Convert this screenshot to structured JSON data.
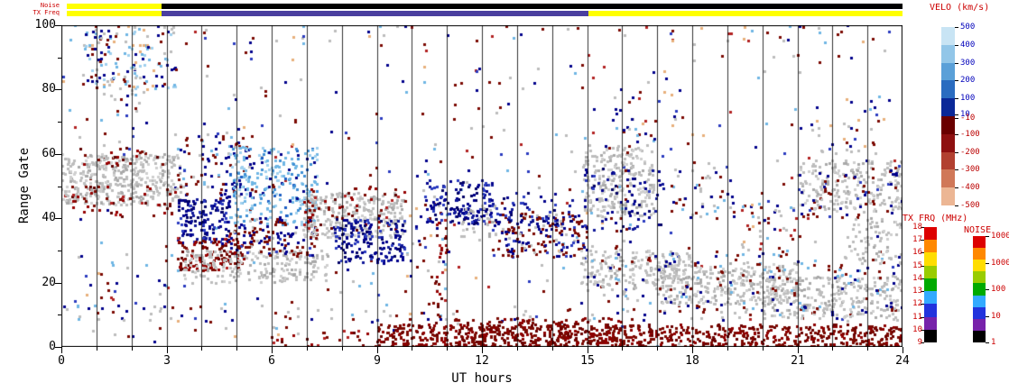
{
  "top_strips": {
    "noise_label": "Noise",
    "txfreq_label": "TX Freq",
    "noise_segments": [
      {
        "t0": 0.15,
        "t1": 2.85,
        "color": "#ffff00"
      },
      {
        "t0": 2.85,
        "t1": 24,
        "color": "#000000"
      }
    ],
    "txfreq_segments": [
      {
        "t0": 0.15,
        "t1": 2.85,
        "color": "#ffff00"
      },
      {
        "t0": 2.85,
        "t1": 15.05,
        "color": "#4a3f9f"
      },
      {
        "t0": 15.05,
        "t1": 24,
        "color": "#ffff00"
      }
    ]
  },
  "axes": {
    "x_label": "UT hours",
    "x_ticks": [
      0,
      3,
      6,
      9,
      12,
      15,
      18,
      21,
      24
    ],
    "x_range": [
      0,
      24
    ],
    "y_label": "Range Gate",
    "y_ticks": [
      0,
      20,
      40,
      60,
      80,
      100
    ],
    "y_range": [
      0,
      100
    ],
    "gridline_every_hours": 1
  },
  "colorbars": {
    "velocity": {
      "title": "VELO (km/s)",
      "ticks": [
        "500",
        "400",
        "300",
        "200",
        "100",
        "10",
        "-10",
        "-100",
        "-200",
        "-300",
        "-400",
        "-500"
      ],
      "positive_label_color": "#0000bb",
      "negative_label_color": "#bb0000",
      "colors": [
        "#c8e4f4",
        "#92c6e8",
        "#5aa0d8",
        "#2a6cc0",
        "#0a2898",
        "#6a0000",
        "#8e1010",
        "#b24030",
        "#d07858",
        "#ecb694"
      ]
    },
    "txfrq": {
      "title": "TX FRQ (MHz)",
      "ticks": [
        "18",
        "17",
        "16",
        "15",
        "14",
        "13",
        "12",
        "11",
        "10",
        "9"
      ],
      "label_color": "#cc0000",
      "colors": [
        "#dd0000",
        "#ff8800",
        "#ffdd00",
        "#99cc00",
        "#00aa00",
        "#33aaff",
        "#2233dd",
        "#7722aa",
        "#000000"
      ]
    },
    "noise": {
      "title": "NOISE",
      "ticks": [
        "10000",
        "1000",
        "100",
        "10",
        "1"
      ],
      "label_color": "#cc0000",
      "colors": [
        "#dd0000",
        "#ff8800",
        "#ffdd00",
        "#99cc00",
        "#00aa00",
        "#33aaff",
        "#2233dd",
        "#7722aa",
        "#000000"
      ]
    }
  },
  "chart_data": {
    "type": "heatmap",
    "title": "",
    "xlabel": "UT hours",
    "ylabel": "Range Gate",
    "x_range": [
      0,
      24
    ],
    "y_range": [
      0,
      100
    ],
    "grid": "vertical lines every 1 hour",
    "legend_position": "right colorbars",
    "palettes": {
      "gray": [
        [
          "#bdbdbd",
          0.55
        ],
        [
          "#cfcfcf",
          0.25
        ],
        [
          "#a9a9a9",
          0.2
        ]
      ],
      "dark_red": [
        [
          "#7c0a02",
          0.4
        ],
        [
          "#960000",
          0.3
        ],
        [
          "#5e0000",
          0.2
        ],
        [
          "#b22222",
          0.1
        ]
      ],
      "dark_red_dense": [
        [
          "#7c0a02",
          0.5
        ],
        [
          "#8e0000",
          0.3
        ],
        [
          "#6a0000",
          0.2
        ]
      ],
      "navy_mix": [
        [
          "#00008b",
          0.35
        ],
        [
          "#101899",
          0.25
        ],
        [
          "#000066",
          0.2
        ],
        [
          "#2b3cc0",
          0.2
        ]
      ],
      "blue_bright_mix": [
        [
          "#9fd0ee",
          0.25
        ],
        [
          "#6fb6e4",
          0.3
        ],
        [
          "#3f8fd4",
          0.25
        ],
        [
          "#1b5ec4",
          0.1
        ],
        [
          "#00008b",
          0.1
        ]
      ],
      "red_navy": [
        [
          "#7c0a02",
          0.45
        ],
        [
          "#00008b",
          0.35
        ],
        [
          "#2b3cc0",
          0.1
        ],
        [
          "#bdbdbd",
          0.1
        ]
      ],
      "mixed_all": [
        [
          "#7c0a02",
          0.22
        ],
        [
          "#00008b",
          0.18
        ],
        [
          "#bdbdbd",
          0.22
        ],
        [
          "#6fb6e4",
          0.12
        ],
        [
          "#e8b07c",
          0.08
        ],
        [
          "#b22222",
          0.08
        ],
        [
          "#2b3cc0",
          0.1
        ]
      ],
      "mixed_topleft": [
        [
          "#7c0a02",
          0.2
        ],
        [
          "#00008b",
          0.2
        ],
        [
          "#6fb6e4",
          0.2
        ],
        [
          "#9fd0ee",
          0.15
        ],
        [
          "#bdbdbd",
          0.15
        ],
        [
          "#e8b07c",
          0.1
        ]
      ],
      "mixed_gray_red": [
        [
          "#bdbdbd",
          0.5
        ],
        [
          "#7c0a02",
          0.3
        ],
        [
          "#00008b",
          0.2
        ]
      ],
      "mixed_blue_red": [
        [
          "#00008b",
          0.3
        ],
        [
          "#7c0a02",
          0.3
        ],
        [
          "#6fb6e4",
          0.2
        ],
        [
          "#bdbdbd",
          0.2
        ]
      ]
    },
    "regions": [
      {
        "t": [
          0,
          24
        ],
        "g": [
          0,
          100
        ],
        "d": 0.012,
        "p": "mixed_all"
      },
      {
        "t": [
          0,
          24
        ],
        "g": [
          8,
          13
        ],
        "d": 0.05,
        "p": "mixed_gray_red"
      },
      {
        "t": [
          0,
          24
        ],
        "g": [
          95,
          100
        ],
        "d": 0.02,
        "p": "mixed_all"
      },
      {
        "t": [
          0.6,
          3.3
        ],
        "g": [
          80,
          100
        ],
        "d": 0.18,
        "p": "mixed_topleft"
      },
      {
        "t": [
          1.2,
          2.4
        ],
        "g": [
          58,
          82
        ],
        "d": 0.06,
        "p": "mixed_all"
      },
      {
        "t": [
          0,
          3.4
        ],
        "g": [
          44,
          60
        ],
        "d": 0.5,
        "p": "gray"
      },
      {
        "t": [
          0,
          3.4
        ],
        "g": [
          40,
          50
        ],
        "d": 0.1,
        "p": "dark_red"
      },
      {
        "t": [
          0.2,
          3.0
        ],
        "g": [
          56,
          62
        ],
        "d": 0.08,
        "p": "dark_red"
      },
      {
        "t": [
          0.3,
          3.0
        ],
        "g": [
          10,
          30
        ],
        "d": 0.03,
        "p": "mixed_all"
      },
      {
        "t": [
          3.3,
          4.8
        ],
        "g": [
          32,
          46
        ],
        "d": 0.45,
        "p": "navy_mix"
      },
      {
        "t": [
          3.3,
          5.2
        ],
        "g": [
          24,
          34
        ],
        "d": 0.4,
        "p": "dark_red"
      },
      {
        "t": [
          3.5,
          7.6
        ],
        "g": [
          20,
          30
        ],
        "d": 0.35,
        "p": "gray"
      },
      {
        "t": [
          3.3,
          5.6
        ],
        "g": [
          46,
          66
        ],
        "d": 0.15,
        "p": "mixed_blue_red"
      },
      {
        "t": [
          4.8,
          7.3
        ],
        "g": [
          38,
          62
        ],
        "d": 0.28,
        "p": "blue_bright_mix"
      },
      {
        "t": [
          4.8,
          7.3
        ],
        "g": [
          28,
          40
        ],
        "d": 0.3,
        "p": "red_navy"
      },
      {
        "t": [
          6.9,
          9.8
        ],
        "g": [
          34,
          48
        ],
        "d": 0.45,
        "p": "gray"
      },
      {
        "t": [
          6.9,
          9.8
        ],
        "g": [
          36,
          50
        ],
        "d": 0.1,
        "p": "dark_red"
      },
      {
        "t": [
          7.8,
          9.8
        ],
        "g": [
          26,
          40
        ],
        "d": 0.4,
        "p": "navy_mix"
      },
      {
        "t": [
          9.8,
          11.0
        ],
        "g": [
          20,
          55
        ],
        "d": 0.05,
        "p": "mixed_all"
      },
      {
        "t": [
          10.4,
          12.3
        ],
        "g": [
          38,
          52
        ],
        "d": 0.38,
        "p": "navy_mix"
      },
      {
        "t": [
          11.4,
          12.4
        ],
        "g": [
          34,
          44
        ],
        "d": 0.2,
        "p": "gray"
      },
      {
        "t": [
          12.3,
          15.0
        ],
        "g": [
          28,
          42
        ],
        "d": 0.32,
        "p": "red_navy"
      },
      {
        "t": [
          12.3,
          14.6
        ],
        "g": [
          38,
          48
        ],
        "d": 0.15,
        "p": "navy_mix"
      },
      {
        "t": [
          9.0,
          24.0
        ],
        "g": [
          0,
          7
        ],
        "d": 0.5,
        "p": "dark_red_dense"
      },
      {
        "t": [
          10.5,
          16.0
        ],
        "g": [
          0,
          9
        ],
        "d": 0.25,
        "p": "dark_red_dense"
      },
      {
        "t": [
          6.0,
          9.0
        ],
        "g": [
          0,
          5
        ],
        "d": 0.12,
        "p": "dark_red"
      },
      {
        "t": [
          10.6,
          11.0
        ],
        "g": [
          0,
          40
        ],
        "d": 0.12,
        "p": "dark_red"
      },
      {
        "t": [
          14.8,
          18.0
        ],
        "g": [
          18,
          30
        ],
        "d": 0.33,
        "p": "gray"
      },
      {
        "t": [
          17.0,
          21.0
        ],
        "g": [
          13,
          26
        ],
        "d": 0.36,
        "p": "gray"
      },
      {
        "t": [
          20.0,
          24.0
        ],
        "g": [
          9,
          22
        ],
        "d": 0.33,
        "p": "gray"
      },
      {
        "t": [
          15.0,
          24.0
        ],
        "g": [
          10,
          30
        ],
        "d": 0.07,
        "p": "mixed_blue_red"
      },
      {
        "t": [
          14.9,
          16.9
        ],
        "g": [
          40,
          62
        ],
        "d": 0.4,
        "p": "gray"
      },
      {
        "t": [
          14.9,
          17.2
        ],
        "g": [
          36,
          56
        ],
        "d": 0.1,
        "p": "navy_mix"
      },
      {
        "t": [
          15.8,
          16.3
        ],
        "g": [
          28,
          82
        ],
        "d": 0.07,
        "p": "mixed_blue_red"
      },
      {
        "t": [
          15.5,
          17.5
        ],
        "g": [
          60,
          80
        ],
        "d": 0.04,
        "p": "mixed_all"
      },
      {
        "t": [
          17.4,
          19.2
        ],
        "g": [
          40,
          56
        ],
        "d": 0.1,
        "p": "mixed_blue_red"
      },
      {
        "t": [
          19.4,
          21.2
        ],
        "g": [
          28,
          46
        ],
        "d": 0.09,
        "p": "mixed_all"
      },
      {
        "t": [
          21.0,
          24.0
        ],
        "g": [
          42,
          58
        ],
        "d": 0.28,
        "p": "gray"
      },
      {
        "t": [
          21.0,
          24.0
        ],
        "g": [
          40,
          56
        ],
        "d": 0.08,
        "p": "red_navy"
      },
      {
        "t": [
          22.4,
          24.0
        ],
        "g": [
          26,
          40
        ],
        "d": 0.22,
        "p": "gray"
      },
      {
        "t": [
          21.5,
          23.5
        ],
        "g": [
          60,
          78
        ],
        "d": 0.05,
        "p": "mixed_all"
      }
    ]
  }
}
